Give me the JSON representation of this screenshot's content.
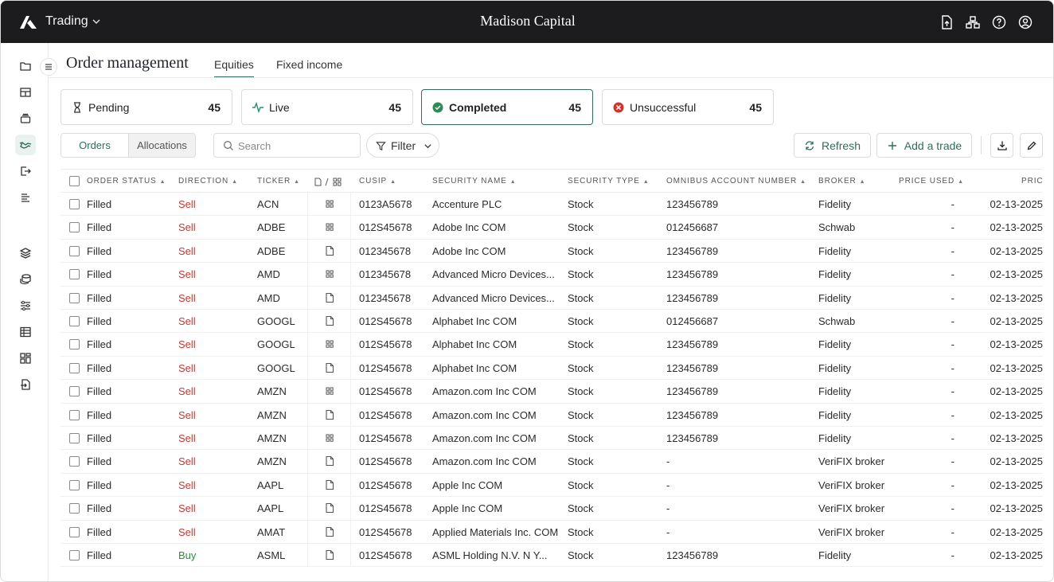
{
  "app": {
    "name": "Trading",
    "brand": "Madison Capital"
  },
  "topbar_icons": [
    "document-upload-icon",
    "network-icon",
    "help-icon",
    "user-icon"
  ],
  "page": {
    "title": "Order management",
    "tabs": [
      {
        "label": "Equities",
        "active": true
      },
      {
        "label": "Fixed income",
        "active": false
      }
    ]
  },
  "status_cards": [
    {
      "label": "Pending",
      "count": "45",
      "icon": "hourglass-icon"
    },
    {
      "label": "Live",
      "count": "45",
      "icon": "pulse-icon"
    },
    {
      "label": "Completed",
      "count": "45",
      "icon": "check-circle-icon",
      "active": true
    },
    {
      "label": "Unsuccessful",
      "count": "45",
      "icon": "x-circle-icon"
    }
  ],
  "toolbar": {
    "view_orders": "Orders",
    "view_allocations": "Allocations",
    "search_placeholder": "Search",
    "filter_label": "Filter",
    "refresh_label": "Refresh",
    "add_trade_label": "Add a trade"
  },
  "table": {
    "columns": [
      "Order status",
      "Direction",
      "Ticker",
      "Cusip",
      "Security name",
      "Security type",
      "Omnibus account number",
      "Broker",
      "Price used",
      "Pric"
    ],
    "rows": [
      {
        "status": "Filled",
        "direction": "Sell",
        "ticker": "ACN",
        "kind": "grid",
        "cusip": "0123A5678",
        "security": "Accenture PLC",
        "type": "Stock",
        "account": "123456789",
        "broker": "Fidelity",
        "price": "-",
        "date": "02-13-2025"
      },
      {
        "status": "Filled",
        "direction": "Sell",
        "ticker": "ADBE",
        "kind": "grid",
        "cusip": "012S45678",
        "security": "Adobe Inc COM",
        "type": "Stock",
        "account": "012456687",
        "broker": "Schwab",
        "price": "-",
        "date": "02-13-2025"
      },
      {
        "status": "Filled",
        "direction": "Sell",
        "ticker": "ADBE",
        "kind": "doc",
        "cusip": "012345678",
        "security": "Adobe Inc COM",
        "type": "Stock",
        "account": "123456789",
        "broker": "Fidelity",
        "price": "-",
        "date": "02-13-2025"
      },
      {
        "status": "Filled",
        "direction": "Sell",
        "ticker": "AMD",
        "kind": "grid",
        "cusip": "012345678",
        "security": "Advanced Micro Devices...",
        "type": "Stock",
        "account": "123456789",
        "broker": "Fidelity",
        "price": "-",
        "date": "02-13-2025"
      },
      {
        "status": "Filled",
        "direction": "Sell",
        "ticker": "AMD",
        "kind": "doc",
        "cusip": "012345678",
        "security": "Advanced Micro Devices...",
        "type": "Stock",
        "account": "123456789",
        "broker": "Fidelity",
        "price": "-",
        "date": "02-13-2025"
      },
      {
        "status": "Filled",
        "direction": "Sell",
        "ticker": "GOOGL",
        "kind": "doc",
        "cusip": "012S45678",
        "security": "Alphabet Inc COM",
        "type": "Stock",
        "account": "012456687",
        "broker": "Schwab",
        "price": "-",
        "date": "02-13-2025"
      },
      {
        "status": "Filled",
        "direction": "Sell",
        "ticker": "GOOGL",
        "kind": "grid",
        "cusip": "012S45678",
        "security": "Alphabet Inc COM",
        "type": "Stock",
        "account": "123456789",
        "broker": "Fidelity",
        "price": "-",
        "date": "02-13-2025"
      },
      {
        "status": "Filled",
        "direction": "Sell",
        "ticker": "GOOGL",
        "kind": "doc",
        "cusip": "012S45678",
        "security": "Alphabet Inc COM",
        "type": "Stock",
        "account": "123456789",
        "broker": "Fidelity",
        "price": "-",
        "date": "02-13-2025"
      },
      {
        "status": "Filled",
        "direction": "Sell",
        "ticker": "AMZN",
        "kind": "grid",
        "cusip": "012S45678",
        "security": "Amazon.com Inc COM",
        "type": "Stock",
        "account": "123456789",
        "broker": "Fidelity",
        "price": "-",
        "date": "02-13-2025"
      },
      {
        "status": "Filled",
        "direction": "Sell",
        "ticker": "AMZN",
        "kind": "doc",
        "cusip": "012S45678",
        "security": "Amazon.com Inc COM",
        "type": "Stock",
        "account": "123456789",
        "broker": "Fidelity",
        "price": "-",
        "date": "02-13-2025"
      },
      {
        "status": "Filled",
        "direction": "Sell",
        "ticker": "AMZN",
        "kind": "grid",
        "cusip": "012S45678",
        "security": "Amazon.com Inc COM",
        "type": "Stock",
        "account": "123456789",
        "broker": "Fidelity",
        "price": "-",
        "date": "02-13-2025"
      },
      {
        "status": "Filled",
        "direction": "Sell",
        "ticker": "AMZN",
        "kind": "doc",
        "cusip": "012S45678",
        "security": "Amazon.com Inc COM",
        "type": "Stock",
        "account": "-",
        "broker": "VeriFIX broker",
        "price": "-",
        "date": "02-13-2025"
      },
      {
        "status": "Filled",
        "direction": "Sell",
        "ticker": "AAPL",
        "kind": "doc",
        "cusip": "012S45678",
        "security": "Apple Inc COM",
        "type": "Stock",
        "account": "-",
        "broker": "VeriFIX broker",
        "price": "-",
        "date": "02-13-2025"
      },
      {
        "status": "Filled",
        "direction": "Sell",
        "ticker": "AAPL",
        "kind": "doc",
        "cusip": "012S45678",
        "security": "Apple Inc COM",
        "type": "Stock",
        "account": "-",
        "broker": "VeriFIX broker",
        "price": "-",
        "date": "02-13-2025"
      },
      {
        "status": "Filled",
        "direction": "Sell",
        "ticker": "AMAT",
        "kind": "doc",
        "cusip": "012S45678",
        "security": "Applied Materials Inc. COM",
        "type": "Stock",
        "account": "-",
        "broker": "VeriFIX broker",
        "price": "-",
        "date": "02-13-2025"
      },
      {
        "status": "Filled",
        "direction": "Buy",
        "ticker": "ASML",
        "kind": "doc",
        "cusip": "012S45678",
        "security": "ASML Holding N.V. N Y...",
        "type": "Stock",
        "account": "123456789",
        "broker": "Fidelity",
        "price": "-",
        "date": "02-13-2025"
      }
    ]
  },
  "colors": {
    "accent": "#2d6e5e",
    "sell": "#d0342c",
    "buy": "#2e8b3e",
    "topbar": "#1c1c1e"
  }
}
